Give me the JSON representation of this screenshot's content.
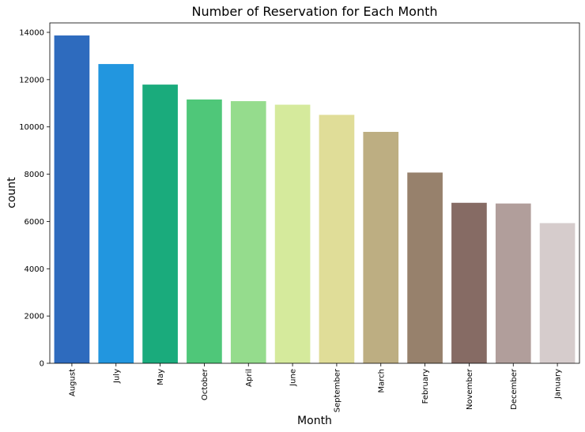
{
  "chart_data": {
    "type": "bar",
    "title": "Number of Reservation for Each Month",
    "xlabel": "Month",
    "ylabel": "count",
    "categories": [
      "August",
      "July",
      "May",
      "October",
      "April",
      "June",
      "September",
      "March",
      "February",
      "November",
      "December",
      "January"
    ],
    "values": [
      13870,
      12660,
      11790,
      11160,
      11090,
      10940,
      10510,
      9790,
      8070,
      6790,
      6760,
      5930
    ],
    "colors": [
      "#2e6bbe",
      "#2296df",
      "#1aab7c",
      "#4fc779",
      "#95dc8d",
      "#d5ea9c",
      "#e0dd98",
      "#bdae82",
      "#97816c",
      "#866b64",
      "#b19e9b",
      "#d6cccc"
    ],
    "ylim": [
      0,
      14400
    ],
    "yticks": [
      0,
      2000,
      4000,
      6000,
      8000,
      10000,
      12000,
      14000
    ],
    "ytick_labels": [
      "0",
      "2000",
      "4000",
      "6000",
      "8000",
      "10000",
      "12000",
      "14000"
    ],
    "grid": false,
    "legend": "none"
  }
}
